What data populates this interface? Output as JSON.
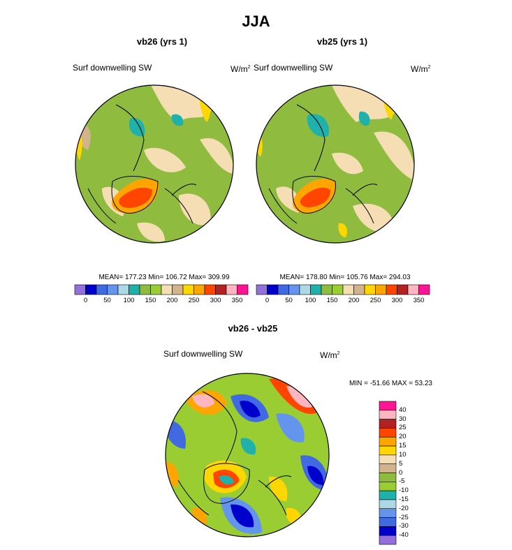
{
  "figure": {
    "title": "JJA"
  },
  "panels": [
    {
      "id": "vb26",
      "title": "vb26 (yrs 1)",
      "variable": "Surf downwelling SW",
      "units_base": "W/m",
      "units_exp": "2",
      "stats": "MEAN= 177.23  Min= 106.72  Max= 309.99",
      "colorbar_ticks": [
        "0",
        "50",
        "100",
        "150",
        "200",
        "250",
        "300",
        "350"
      ]
    },
    {
      "id": "vb25",
      "title": "vb25 (yrs 1)",
      "variable": "Surf downwelling SW",
      "units_base": "W/m",
      "units_exp": "2",
      "stats": "MEAN= 178.80  Min= 105.76  Max= 294.03",
      "colorbar_ticks": [
        "0",
        "50",
        "100",
        "150",
        "200",
        "250",
        "300",
        "350"
      ]
    },
    {
      "id": "diff",
      "title": "vb26 - vb25",
      "variable": "Surf downwelling SW",
      "units_base": "W/m",
      "units_exp": "2",
      "stats": "MIN = -51.66 MAX =  53.23",
      "colorbar_ticks": [
        "40",
        "30",
        "25",
        "20",
        "15",
        "10",
        "5",
        "0",
        "-5",
        "-10",
        "-15",
        "-20",
        "-25",
        "-30",
        "-40"
      ]
    }
  ],
  "palettes": {
    "absolute": [
      "#9370db",
      "#0000cd",
      "#4169e1",
      "#6495ed",
      "#add8e6",
      "#20b2aa",
      "#8fbc3f",
      "#9acd32",
      "#f5deb3",
      "#d2b48c",
      "#ffd700",
      "#ffa500",
      "#ff4500",
      "#b22222",
      "#ffb6c1",
      "#ff1493"
    ],
    "difference": [
      "#ff1493",
      "#ffb6c1",
      "#b22222",
      "#ff4500",
      "#ffa500",
      "#ffd700",
      "#f5deb3",
      "#d2b48c",
      "#8fbc3f",
      "#9acd32",
      "#20b2aa",
      "#add8e6",
      "#6495ed",
      "#4169e1",
      "#0000cd",
      "#9370db"
    ]
  }
}
